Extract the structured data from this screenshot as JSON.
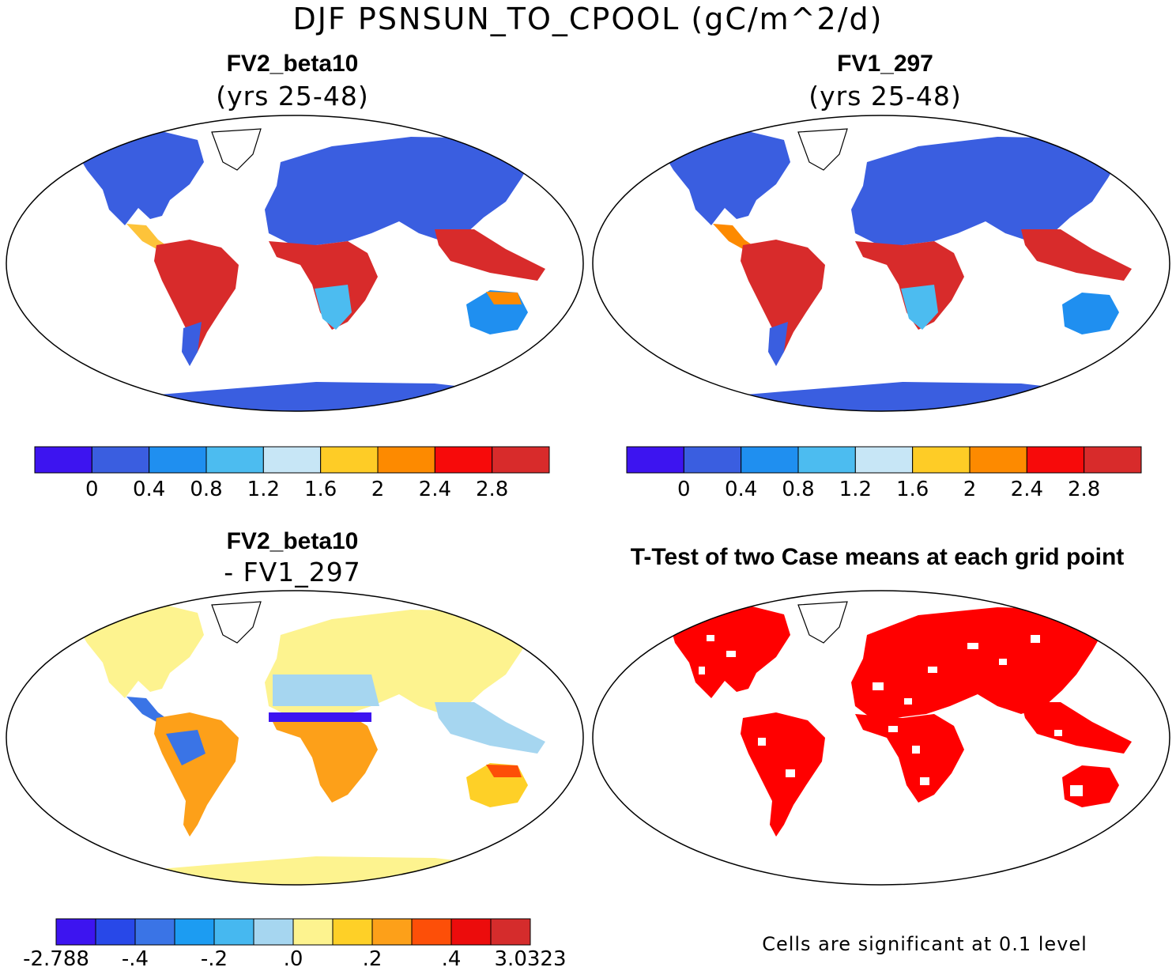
{
  "figure": {
    "title": "DJF PSNSUN_TO_CPOOL (gC/m^2/d)"
  },
  "panels": [
    {
      "id": "panel-case1",
      "title": "FV2_beta10",
      "subtitle": "(yrs 25-48)"
    },
    {
      "id": "panel-case2",
      "title": "FV1_297",
      "subtitle": "(yrs 25-48)"
    },
    {
      "id": "panel-diff",
      "title": "FV2_beta10",
      "subtitle": "- FV1_297"
    },
    {
      "id": "panel-ttest",
      "title": "T-Test of two Case means at each grid point",
      "note": "Cells are significant at 0.1 level"
    }
  ],
  "colorbars": {
    "absolute": {
      "colors": [
        "#3d14f0",
        "#3a5ee0",
        "#1f8ff0",
        "#4cbcf0",
        "#c7e6f6",
        "#fecc26",
        "#fd8a00",
        "#f70a0a",
        "#d82b2b"
      ],
      "labels": [
        "0",
        "0.4",
        "0.8",
        "1.2",
        "1.6",
        "2",
        "2.4",
        "2.8"
      ]
    },
    "difference": {
      "colors": [
        "#3d14f0",
        "#2848e8",
        "#3a74e6",
        "#1c9cf2",
        "#46b8f0",
        "#a6d6f0",
        "#fdf38f",
        "#fed027",
        "#fda019",
        "#fd4f08",
        "#ec0c0c",
        "#d52c2c"
      ],
      "labels": [
        "-2.788",
        "-.4",
        "-.2",
        ".0",
        ".2",
        ".4",
        "3.0323"
      ]
    }
  },
  "map_colors": {
    "land_cool": "#3a5ee0",
    "tropics_hot": "#e33a22",
    "tropics_warm": "#fd8a00",
    "diff_base": "#fdf38f",
    "diff_light": "#a6d6f0",
    "significant": "#ff0000"
  }
}
